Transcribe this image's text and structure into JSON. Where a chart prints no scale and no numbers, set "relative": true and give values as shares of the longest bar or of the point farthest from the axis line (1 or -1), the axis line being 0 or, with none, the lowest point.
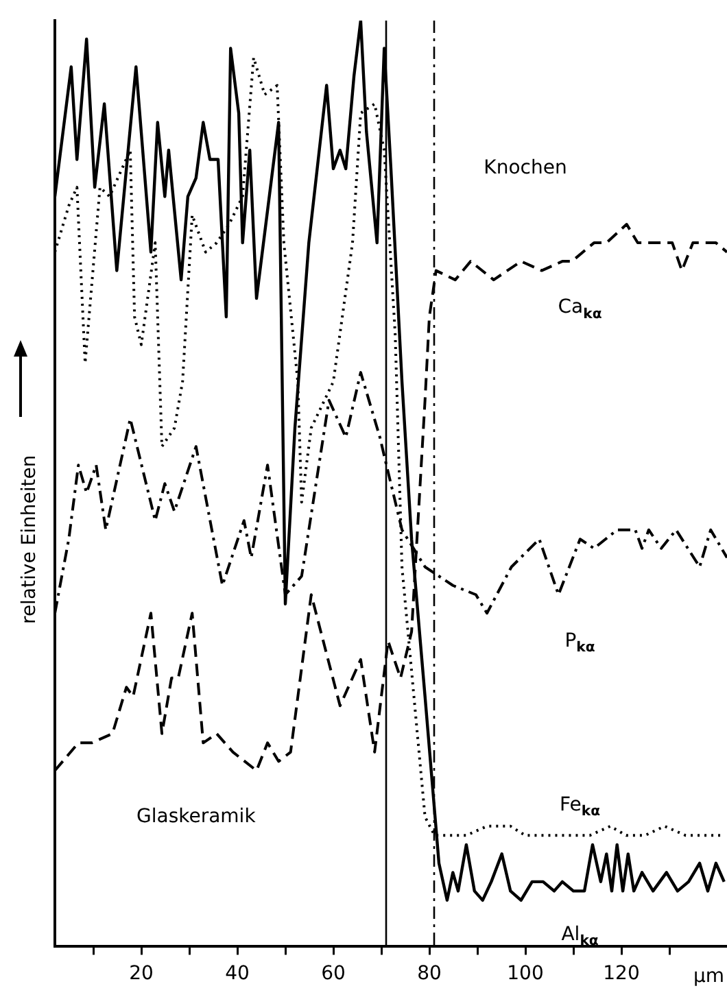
{
  "chart_data": {
    "type": "line",
    "relative": true,
    "xlabel": "µm",
    "ylabel": "relative Einheiten",
    "marker": "none",
    "grid": false,
    "xlim": [
      2,
      142
    ],
    "xticks": [
      {
        "value": 10,
        "label": null
      },
      20,
      {
        "value": 30,
        "label": null
      },
      40,
      {
        "value": 50,
        "label": null
      },
      60,
      {
        "value": 70,
        "label": null
      },
      80,
      {
        "value": 90,
        "label": null
      },
      100,
      {
        "value": 110,
        "label": null
      },
      120,
      {
        "value": 130,
        "label": null
      }
    ],
    "annotations": [
      "Knochen",
      "Glaskeramik"
    ],
    "ref_lines": [
      {
        "axis": "x",
        "value": 71,
        "line_style": "solid",
        "color": "#000000"
      },
      {
        "axis": "x",
        "value": 81,
        "line_style": "dashdot",
        "color": "#000000"
      }
    ],
    "series": [
      {
        "name": "Ca$_{kα}$",
        "color": "#000000",
        "line_style": "dashed",
        "x": [
          2,
          6.9,
          9.7,
          14,
          16.9,
          18.3,
          22,
          24.3,
          26.3,
          27.7,
          30.6,
          32.9,
          35.7,
          39.1,
          44,
          46.3,
          48.6,
          51.1,
          55.4,
          61.4,
          65.7,
          68.6,
          71.4,
          74,
          76.3,
          79.1,
          80,
          81.4,
          85.4,
          88.6,
          93.4,
          99.1,
          103.4,
          107.7,
          109.7,
          114.3,
          116.9,
          121.1,
          123.4,
          127.7,
          130.6,
          132.6,
          134.9,
          137.1,
          139.7,
          142
        ],
        "values": [
          0.19,
          0.22,
          0.22,
          0.23,
          0.28,
          0.27,
          0.36,
          0.23,
          0.29,
          0.29,
          0.36,
          0.22,
          0.23,
          0.21,
          0.19,
          0.22,
          0.2,
          0.21,
          0.38,
          0.26,
          0.31,
          0.21,
          0.33,
          0.29,
          0.34,
          0.59,
          0.68,
          0.73,
          0.72,
          0.74,
          0.72,
          0.74,
          0.73,
          0.74,
          0.74,
          0.76,
          0.76,
          0.78,
          0.76,
          0.76,
          0.76,
          0.73,
          0.76,
          0.76,
          0.76,
          0.75
        ]
      },
      {
        "name": "P$_{kα}$",
        "color": "#000000",
        "line_style": "dashdot",
        "x": [
          2,
          4.9,
          6.9,
          8.6,
          10.6,
          12.6,
          17.7,
          22.9,
          24.9,
          26.9,
          31.4,
          36.9,
          41.4,
          42.9,
          46.3,
          50,
          53.4,
          59.1,
          62.6,
          65.7,
          69.7,
          70.6,
          74.3,
          79.1,
          82,
          84.9,
          89.7,
          92,
          97.1,
          102.9,
          106.9,
          111.4,
          114.3,
          119.1,
          122.9,
          124.3,
          125.7,
          128.3,
          131.4,
          136.3,
          138.6,
          142
        ],
        "values": [
          0.36,
          0.44,
          0.52,
          0.49,
          0.52,
          0.45,
          0.57,
          0.46,
          0.5,
          0.47,
          0.54,
          0.39,
          0.46,
          0.42,
          0.52,
          0.38,
          0.4,
          0.59,
          0.55,
          0.62,
          0.55,
          0.53,
          0.45,
          0.41,
          0.4,
          0.39,
          0.38,
          0.36,
          0.41,
          0.44,
          0.38,
          0.44,
          0.43,
          0.45,
          0.45,
          0.43,
          0.45,
          0.43,
          0.45,
          0.41,
          0.45,
          0.42
        ]
      },
      {
        "name": "Fe$_{kα}$",
        "color": "#000000",
        "line_style": "dotted",
        "x": [
          2,
          4.9,
          6.6,
          8.3,
          11.4,
          13.4,
          17.7,
          18.6,
          20,
          22.9,
          24.3,
          26.9,
          28.6,
          30.6,
          33.4,
          35.7,
          38.3,
          41.1,
          43.4,
          45.7,
          48.3,
          49.7,
          52.6,
          53.4,
          55.4,
          60,
          64,
          65.7,
          68.6,
          70.6,
          72.9,
          74.3,
          79.1,
          81.1,
          87.7,
          92,
          96.9,
          100,
          104.9,
          110,
          113.4,
          117.7,
          121,
          124.9,
          129,
          133.4,
          137,
          141.4
        ],
        "values": [
          0.75,
          0.8,
          0.82,
          0.63,
          0.82,
          0.81,
          0.86,
          0.68,
          0.65,
          0.76,
          0.54,
          0.56,
          0.61,
          0.79,
          0.75,
          0.76,
          0.78,
          0.81,
          0.96,
          0.92,
          0.93,
          0.76,
          0.61,
          0.48,
          0.56,
          0.61,
          0.76,
          0.9,
          0.91,
          0.86,
          0.66,
          0.41,
          0.14,
          0.12,
          0.12,
          0.13,
          0.13,
          0.12,
          0.12,
          0.12,
          0.12,
          0.13,
          0.12,
          0.12,
          0.13,
          0.12,
          0.12,
          0.12
        ]
      },
      {
        "name": "Al$_{kα}$",
        "color": "#000000",
        "line_style": "solid",
        "x": [
          2,
          5.4,
          6.6,
          8.6,
          10.3,
          12.3,
          14.9,
          18.9,
          22,
          23.4,
          24.9,
          25.7,
          28.3,
          29.7,
          31.4,
          32.9,
          34.3,
          36,
          37.7,
          38.6,
          40.3,
          41.1,
          42.6,
          44,
          48.6,
          50,
          52,
          54.9,
          58.6,
          60,
          61.4,
          62.6,
          64.3,
          65.7,
          66.9,
          69.1,
          70.6,
          72,
          74.3,
          76.3,
          79.1,
          82,
          83.7,
          84.9,
          86,
          87.7,
          89.4,
          91.1,
          92.9,
          95.1,
          96.9,
          99.1,
          101.4,
          103.7,
          106,
          107.7,
          110,
          112.3,
          114,
          115.7,
          116.9,
          118,
          119.1,
          120.3,
          121.4,
          122.6,
          124.3,
          126.6,
          129.4,
          131.7,
          134,
          136.3,
          138,
          139.7,
          141.4
        ],
        "values": [
          0.81,
          0.95,
          0.85,
          0.98,
          0.82,
          0.91,
          0.73,
          0.95,
          0.75,
          0.89,
          0.81,
          0.86,
          0.72,
          0.81,
          0.83,
          0.89,
          0.85,
          0.85,
          0.68,
          0.97,
          0.9,
          0.76,
          0.86,
          0.7,
          0.89,
          0.37,
          0.56,
          0.76,
          0.93,
          0.84,
          0.86,
          0.84,
          0.94,
          1,
          0.88,
          0.76,
          0.97,
          0.84,
          0.61,
          0.44,
          0.27,
          0.09,
          0.05,
          0.08,
          0.06,
          0.11,
          0.06,
          0.05,
          0.07,
          0.1,
          0.06,
          0.05,
          0.07,
          0.07,
          0.06,
          0.07,
          0.06,
          0.06,
          0.11,
          0.07,
          0.1,
          0.06,
          0.11,
          0.06,
          0.1,
          0.06,
          0.08,
          0.06,
          0.08,
          0.06,
          0.07,
          0.09,
          0.06,
          0.09,
          0.07
        ]
      }
    ]
  }
}
